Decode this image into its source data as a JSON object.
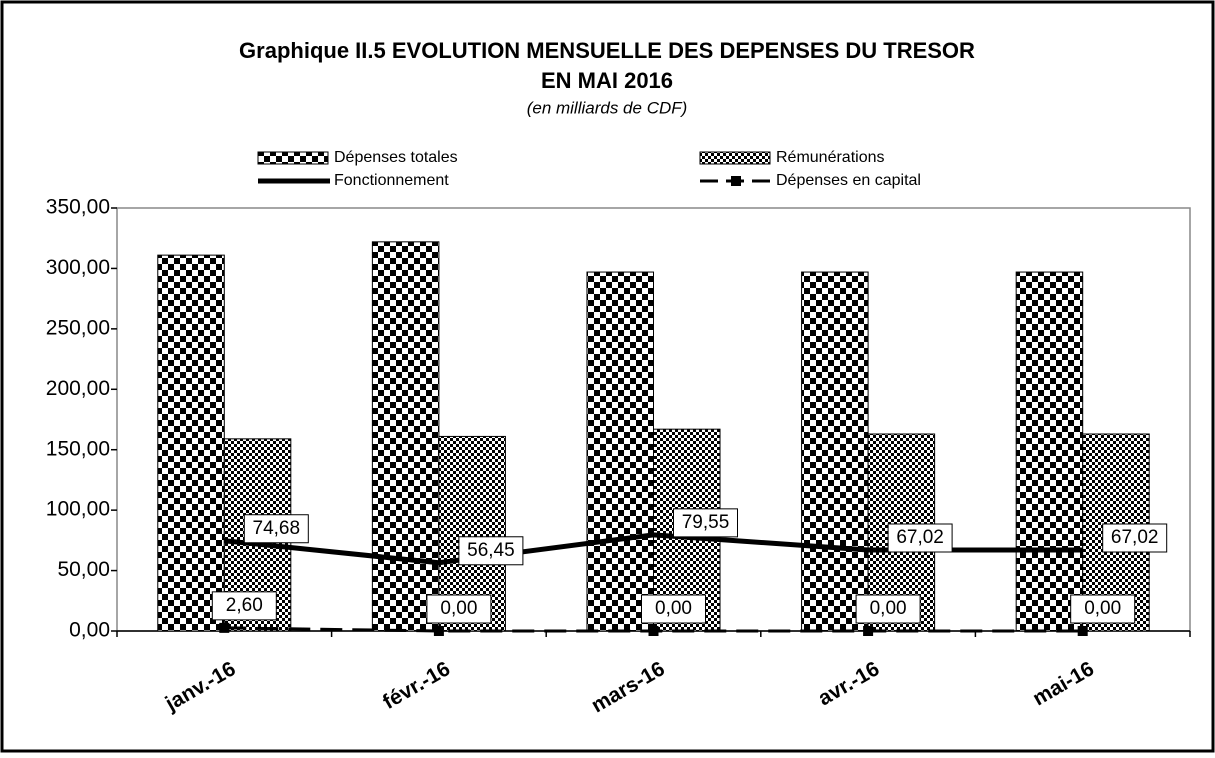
{
  "chart_data": {
    "type": "bar-line",
    "title": [
      "Graphique II.5  EVOLUTION MENSUELLE DES DEPENSES DU TRESOR",
      "EN  MAI 2016"
    ],
    "subtitle": "(en milliards de CDF)",
    "categories": [
      "janv.-16",
      "févr.-16",
      "mars-16",
      "avr.-16",
      "mai-16"
    ],
    "series": [
      {
        "name": "Dépenses totales",
        "type": "bar",
        "color": "#000000",
        "pattern": "checker-large",
        "values": [
          311,
          322,
          297,
          297,
          297
        ]
      },
      {
        "name": "Rémunérations",
        "type": "bar",
        "color": "#000000",
        "pattern": "checker-small",
        "values": [
          159,
          161,
          167,
          163,
          163
        ]
      },
      {
        "name": "Fonctionnement",
        "type": "line",
        "color": "#000000",
        "dash": false,
        "values": [
          74.68,
          56.45,
          79.55,
          67.02,
          67.02
        ],
        "value_labels": [
          "74,68",
          "56,45",
          "79,55",
          "67,02",
          "67,02"
        ]
      },
      {
        "name": "Dépenses en capital",
        "type": "line",
        "color": "#000000",
        "dash": true,
        "values": [
          2.6,
          0,
          0,
          0,
          0
        ],
        "value_labels": [
          "2,60",
          "0,00",
          "0,00",
          "0,00",
          "0,00"
        ]
      }
    ],
    "ylim": [
      0,
      350
    ],
    "yticks": [
      {
        "value": 0,
        "label": "0,00"
      },
      {
        "value": 50,
        "label": "50,00"
      },
      {
        "value": 100,
        "label": "100,00"
      },
      {
        "value": 150,
        "label": "150,00"
      },
      {
        "value": 200,
        "label": "200,00"
      },
      {
        "value": 250,
        "label": "250,00"
      },
      {
        "value": 300,
        "label": "300,00"
      },
      {
        "value": 350,
        "label": "350,00"
      }
    ],
    "legend": "top"
  }
}
